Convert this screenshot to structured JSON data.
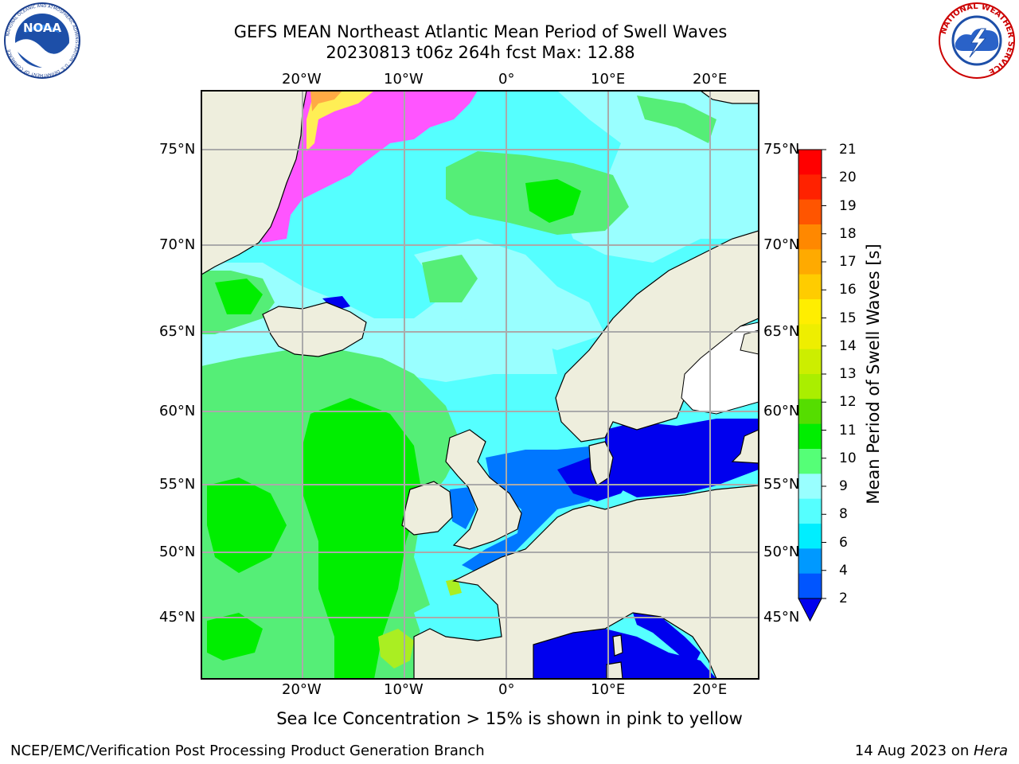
{
  "header": {
    "title_line1": "GEFS MEAN Northeast Atlantic Mean Period of Swell Waves",
    "title_line2": "20230813 t06z 264h fcst   Max: 12.88"
  },
  "logos": {
    "noaa_text": "NOAA",
    "noaa_ring_text": "NATIONAL OCEANIC AND ATMOSPHERIC ADMINISTRATION · U.S. DEPARTMENT OF COMMERCE",
    "nws_ring_text": "NATIONAL WEATHER SERVICE"
  },
  "map": {
    "lon_labels_top": [
      "20°W",
      "10°W",
      "0°",
      "10°E",
      "20°E"
    ],
    "lon_labels_bottom": [
      "20°W",
      "10°W",
      "0°",
      "10°E",
      "20°E"
    ],
    "lat_labels_left": [
      "75°N",
      "70°N",
      "65°N",
      "60°N",
      "55°N",
      "50°N",
      "45°N"
    ],
    "lat_labels_right": [
      "75°N",
      "70°N",
      "65°N",
      "60°N",
      "55°N",
      "50°N",
      "45°N"
    ],
    "colors": {
      "land": "#eeeedd",
      "ocean_main": "#55ffff",
      "ocean_light": "#99ffff",
      "swell_9_10": "#55ee77",
      "swell_10_11": "#00ee00",
      "swell_12": "#aaee22",
      "swell_2_4": "#0077ff",
      "swell_lt2": "#0000ee",
      "ice_pink": "#ff55ff",
      "ice_yellow": "#ffee55",
      "grid": "#aaaaaa"
    }
  },
  "colorbar": {
    "title": "Mean Period of Swell Waves [s]",
    "ticks": [
      "21",
      "20",
      "19",
      "18",
      "17",
      "16",
      "15",
      "14",
      "13",
      "12",
      "11",
      "10",
      "9",
      "8",
      "6",
      "4",
      "2"
    ],
    "colors": [
      "#ff0000",
      "#ff2200",
      "#ff5500",
      "#ff8800",
      "#ffaa00",
      "#ffcc00",
      "#ffee00",
      "#eeee00",
      "#ccee00",
      "#aaee00",
      "#55dd00",
      "#00ee00",
      "#55ff77",
      "#99ffff",
      "#55ffff",
      "#00eeff",
      "#0099ff",
      "#0055ff"
    ],
    "extend_color": "#0000ee"
  },
  "footer": {
    "sea_ice_note": "Sea Ice Concentration > 15% is shown in pink to yellow",
    "branch": "NCEP/EMC/Verification Post Processing Product Generation Branch",
    "date_prefix": "14 Aug 2023 on ",
    "machine": "Hera"
  }
}
